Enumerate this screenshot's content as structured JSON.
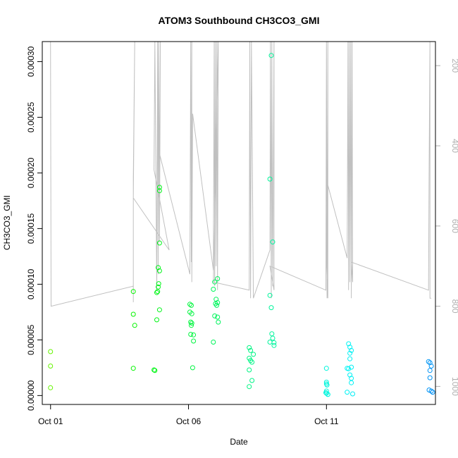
{
  "chart_data": {
    "type": "scatter",
    "title": "ATOM3 Southbound CH3CO3_GMI",
    "xlabel": "Date",
    "ylabel": "CH3CO3_GMI",
    "x_tick_labels": [
      "Oct 01",
      "Oct 06",
      "Oct 11"
    ],
    "x_tick_days": [
      1,
      6,
      11
    ],
    "xlim": [
      0.7,
      14.95
    ],
    "y_tick_labels": [
      "0.00000",
      "0.00005",
      "0.00010",
      "0.00015",
      "0.00020",
      "0.00025",
      "0.00030"
    ],
    "y_ticks": [
      0,
      5e-05,
      0.0001,
      0.00015,
      0.0002,
      0.00025,
      0.0003
    ],
    "ylim": [
      -8e-06,
      0.000318
    ],
    "right_axis": {
      "label": "",
      "reversed": true,
      "tick_labels": [
        "200",
        "400",
        "600",
        "800",
        "1000"
      ],
      "ticks": [
        200,
        400,
        600,
        800,
        1000
      ],
      "lim": [
        1045,
        140
      ],
      "line_color": "#c0c0c0"
    },
    "grid": false,
    "legend": "none",
    "points": [
      {
        "x": 1.0,
        "y": 3.95e-05
      },
      {
        "x": 1.0,
        "y": 2.65e-05
      },
      {
        "x": 1.0,
        "y": 7e-06
      },
      {
        "x": 4.0,
        "y": 9.35e-05
      },
      {
        "x": 4.0,
        "y": 7.3e-05
      },
      {
        "x": 4.05,
        "y": 6.3e-05
      },
      {
        "x": 4.0,
        "y": 2.45e-05
      },
      {
        "x": 4.75,
        "y": 2.3e-05
      },
      {
        "x": 4.78,
        "y": 2.25e-05
      },
      {
        "x": 4.85,
        "y": 9.25e-05
      },
      {
        "x": 4.88,
        "y": 9.35e-05
      },
      {
        "x": 4.9,
        "y": 9.75e-05
      },
      {
        "x": 4.92,
        "y": 0.0001005
      },
      {
        "x": 4.85,
        "y": 6.8e-05
      },
      {
        "x": 4.95,
        "y": 7.7e-05
      },
      {
        "x": 4.9,
        "y": 0.000115
      },
      {
        "x": 4.95,
        "y": 0.000112
      },
      {
        "x": 4.95,
        "y": 0.000137
      },
      {
        "x": 4.95,
        "y": 0.000184
      },
      {
        "x": 4.95,
        "y": 0.000187
      },
      {
        "x": 6.05,
        "y": 8.2e-05
      },
      {
        "x": 6.1,
        "y": 8.1e-05
      },
      {
        "x": 6.05,
        "y": 7.5e-05
      },
      {
        "x": 6.12,
        "y": 7.35e-05
      },
      {
        "x": 6.08,
        "y": 6.6e-05
      },
      {
        "x": 6.12,
        "y": 6.5e-05
      },
      {
        "x": 6.1,
        "y": 6.3e-05
      },
      {
        "x": 6.08,
        "y": 5.5e-05
      },
      {
        "x": 6.18,
        "y": 5.45e-05
      },
      {
        "x": 6.18,
        "y": 4.9e-05
      },
      {
        "x": 6.15,
        "y": 2.5e-05
      },
      {
        "x": 6.9,
        "y": 9.55e-05
      },
      {
        "x": 6.95,
        "y": 0.000102
      },
      {
        "x": 7.05,
        "y": 0.000105
      },
      {
        "x": 7.0,
        "y": 8.65e-05
      },
      {
        "x": 7.05,
        "y": 8.35e-05
      },
      {
        "x": 6.98,
        "y": 8.25e-05
      },
      {
        "x": 7.02,
        "y": 8.1e-05
      },
      {
        "x": 6.95,
        "y": 7.15e-05
      },
      {
        "x": 7.05,
        "y": 7.05e-05
      },
      {
        "x": 7.08,
        "y": 6.6e-05
      },
      {
        "x": 6.9,
        "y": 4.8e-05
      },
      {
        "x": 8.2,
        "y": 4.3e-05
      },
      {
        "x": 8.25,
        "y": 4.05e-05
      },
      {
        "x": 8.35,
        "y": 3.7e-05
      },
      {
        "x": 8.2,
        "y": 3.35e-05
      },
      {
        "x": 8.25,
        "y": 3.15e-05
      },
      {
        "x": 8.3,
        "y": 3e-05
      },
      {
        "x": 8.2,
        "y": 2.3e-05
      },
      {
        "x": 8.3,
        "y": 1.35e-05
      },
      {
        "x": 8.2,
        "y": 8e-06
      },
      {
        "x": 9.0,
        "y": 0.0003055
      },
      {
        "x": 8.95,
        "y": 0.0001945
      },
      {
        "x": 9.05,
        "y": 0.000138
      },
      {
        "x": 8.95,
        "y": 9e-05
      },
      {
        "x": 9.0,
        "y": 7.9e-05
      },
      {
        "x": 9.02,
        "y": 5.55e-05
      },
      {
        "x": 9.05,
        "y": 5.15e-05
      },
      {
        "x": 8.95,
        "y": 4.8e-05
      },
      {
        "x": 9.1,
        "y": 4.75e-05
      },
      {
        "x": 9.1,
        "y": 4.5e-05
      },
      {
        "x": 11.0,
        "y": 2.45e-05
      },
      {
        "x": 11.0,
        "y": 1.2e-05
      },
      {
        "x": 11.0,
        "y": 1.05e-05
      },
      {
        "x": 11.02,
        "y": 9.5e-06
      },
      {
        "x": 11.0,
        "y": 4e-06
      },
      {
        "x": 10.98,
        "y": 2.5e-06
      },
      {
        "x": 11.0,
        "y": 2e-06
      },
      {
        "x": 11.05,
        "y": 1e-06
      },
      {
        "x": 11.05,
        "y": 1e-06
      },
      {
        "x": 11.8,
        "y": 4.65e-05
      },
      {
        "x": 11.85,
        "y": 4.35e-05
      },
      {
        "x": 11.9,
        "y": 4.05e-05
      },
      {
        "x": 11.85,
        "y": 3.8e-05
      },
      {
        "x": 11.85,
        "y": 3.3e-05
      },
      {
        "x": 11.75,
        "y": 2.45e-05
      },
      {
        "x": 11.8,
        "y": 2.4e-05
      },
      {
        "x": 11.9,
        "y": 2.55e-05
      },
      {
        "x": 11.85,
        "y": 1.85e-05
      },
      {
        "x": 11.9,
        "y": 1.55e-05
      },
      {
        "x": 11.9,
        "y": 1.15e-05
      },
      {
        "x": 11.75,
        "y": 3e-06
      },
      {
        "x": 11.95,
        "y": 1.5e-06
      },
      {
        "x": 14.7,
        "y": 3.05e-05
      },
      {
        "x": 14.75,
        "y": 2.95e-05
      },
      {
        "x": 14.8,
        "y": 2.65e-05
      },
      {
        "x": 14.75,
        "y": 2.25e-05
      },
      {
        "x": 14.75,
        "y": 1.6e-05
      },
      {
        "x": 14.72,
        "y": 5e-06
      },
      {
        "x": 14.8,
        "y": 4e-06
      },
      {
        "x": 14.85,
        "y": 3e-06
      }
    ],
    "pressure_profile": [
      [
        1.0,
        140
      ],
      [
        1.02,
        800
      ],
      [
        4.0,
        750
      ],
      [
        4.0,
        790
      ],
      [
        4.0,
        480
      ],
      [
        4.05,
        140
      ],
      [
        4.0,
        530
      ],
      [
        5.3,
        660
      ],
      [
        4.75,
        460
      ],
      [
        4.78,
        140
      ],
      [
        4.85,
        760
      ],
      [
        4.88,
        140
      ],
      [
        4.9,
        720
      ],
      [
        4.92,
        140
      ],
      [
        4.95,
        640
      ],
      [
        4.98,
        140
      ],
      [
        4.95,
        420
      ],
      [
        6.05,
        720
      ],
      [
        6.08,
        140
      ],
      [
        6.1,
        690
      ],
      [
        6.12,
        140
      ],
      [
        6.12,
        740
      ],
      [
        6.15,
        320
      ],
      [
        6.9,
        710
      ],
      [
        6.93,
        140
      ],
      [
        6.95,
        750
      ],
      [
        6.98,
        140
      ],
      [
        7.0,
        700
      ],
      [
        7.03,
        140
      ],
      [
        7.05,
        760
      ],
      [
        7.08,
        140
      ],
      [
        6.9,
        740
      ],
      [
        8.2,
        760
      ],
      [
        8.22,
        140
      ],
      [
        8.25,
        780
      ],
      [
        8.28,
        140
      ],
      [
        8.3,
        310
      ],
      [
        8.35,
        780
      ],
      [
        8.95,
        660
      ],
      [
        8.97,
        140
      ],
      [
        9.0,
        780
      ],
      [
        9.02,
        140
      ],
      [
        9.05,
        750
      ],
      [
        9.1,
        140
      ],
      [
        9.1,
        760
      ],
      [
        8.95,
        700
      ],
      [
        10.98,
        760
      ],
      [
        11.0,
        140
      ],
      [
        11.02,
        780
      ],
      [
        11.05,
        140
      ],
      [
        11.05,
        780
      ],
      [
        11.0,
        690
      ],
      [
        11.02,
        490
      ],
      [
        11.75,
        680
      ],
      [
        11.78,
        140
      ],
      [
        11.8,
        760
      ],
      [
        11.83,
        140
      ],
      [
        11.85,
        740
      ],
      [
        11.88,
        140
      ],
      [
        11.9,
        780
      ],
      [
        11.93,
        140
      ],
      [
        11.95,
        740
      ],
      [
        11.9,
        690
      ],
      [
        14.7,
        760
      ],
      [
        14.72,
        460
      ],
      [
        14.75,
        140
      ],
      [
        14.75,
        780
      ],
      [
        14.8,
        780
      ]
    ]
  }
}
